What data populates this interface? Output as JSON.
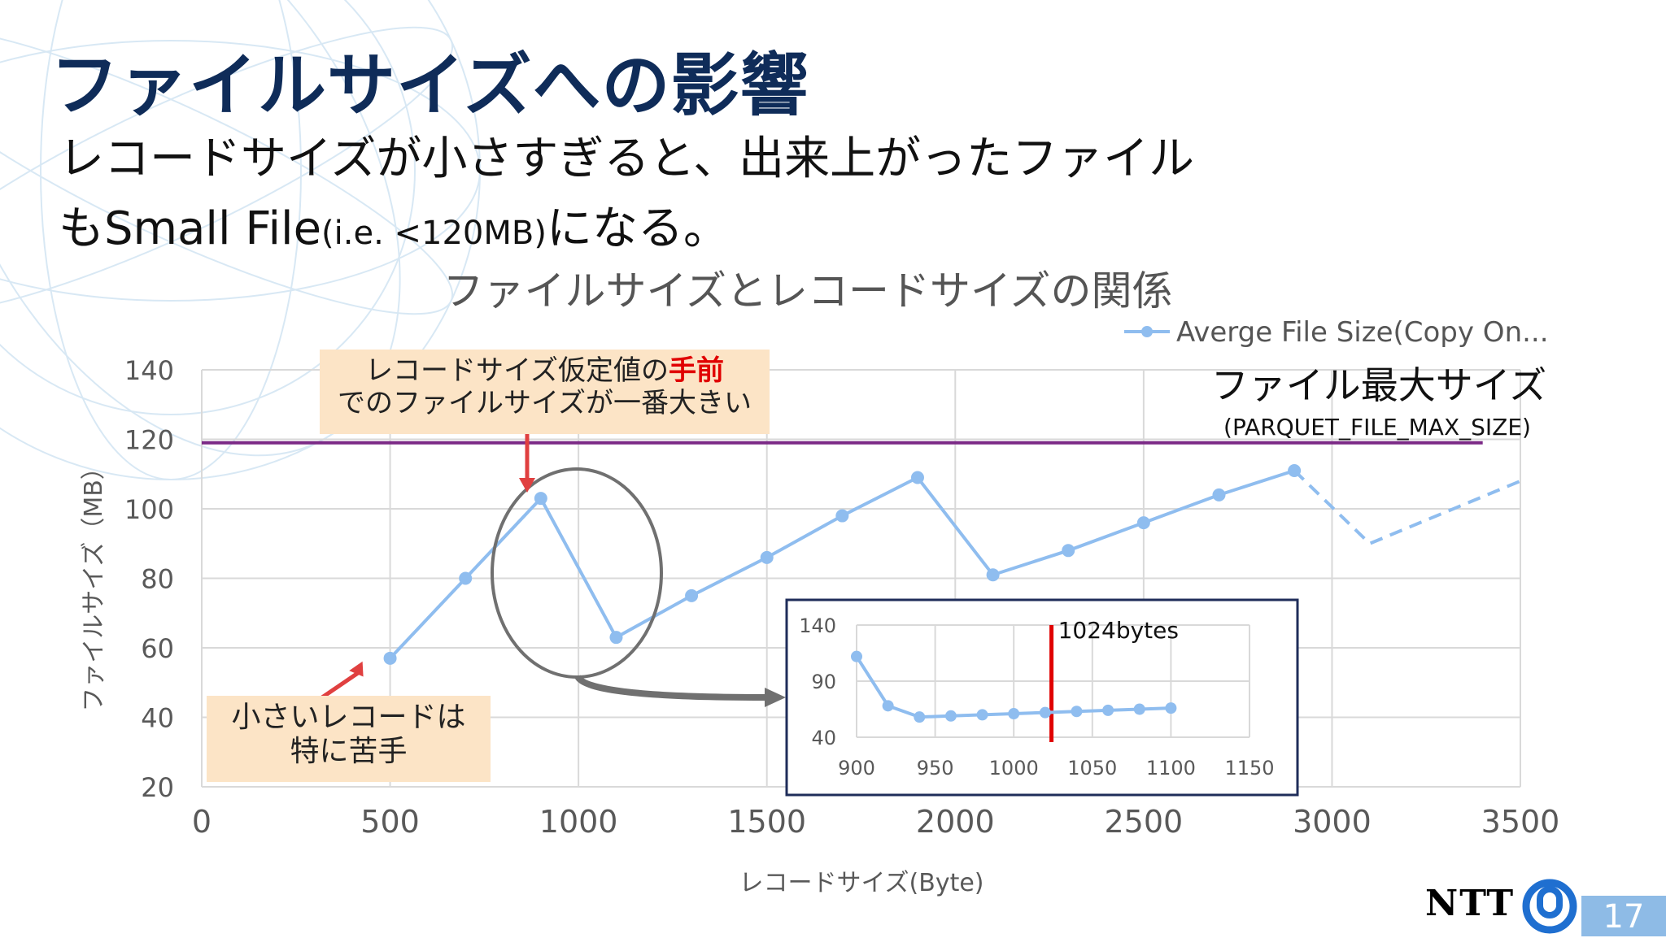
{
  "slide": {
    "title": "ファイルサイズへの影響",
    "body_line1": "レコードサイズが小さすぎると、出来上がったファイル",
    "body_line2_a": "もSmall File",
    "body_line2_b": "(i.e. <120MB)",
    "body_line2_c": "になる。",
    "page_number": "17",
    "brand": "NTT"
  },
  "annotations": {
    "callout_top_line1_a": "レコードサイズ仮定値の",
    "callout_top_line1_b": "手前",
    "callout_top_line2": "でのファイルサイズが一番大きい",
    "callout_bottom_line1": "小さいレコードは",
    "callout_bottom_line2": "特に苦手",
    "max_label": "ファイル最大サイズ",
    "max_sublabel": "(PARQUET_FILE_MAX_SIZE)",
    "inset_marker_label": "1024bytes"
  },
  "colors": {
    "title": "#0f2c59",
    "series": "#8fbdef",
    "max_line": "#7b2a86",
    "callout_bg": "#fce4c6",
    "highlight": "#e00000",
    "inset_border": "#1f2d5a",
    "marker_line": "#e00000"
  },
  "chart_data": [
    {
      "type": "line",
      "title": "ファイルサイズとレコードサイズの関係",
      "xlabel": "レコードサイズ(Byte)",
      "ylabel": "ファイルサイズ（MB）",
      "xlim": [
        0,
        3500
      ],
      "ylim": [
        20,
        140
      ],
      "xticks": [
        0,
        500,
        1000,
        1500,
        2000,
        2500,
        3000,
        3500
      ],
      "yticks": [
        20,
        40,
        60,
        80,
        100,
        120,
        140
      ],
      "grid": true,
      "legend": "top-right",
      "series": [
        {
          "name": "Averge File Size(Copy On...",
          "x": [
            500,
            700,
            900,
            1100,
            1300,
            1500,
            1700,
            1900,
            2100,
            2300,
            2500,
            2700,
            2900
          ],
          "y": [
            57,
            80,
            103,
            63,
            75,
            86,
            98,
            109,
            81,
            88,
            96,
            104,
            111
          ]
        }
      ],
      "extrapolated": {
        "x": [
          2900,
          3100,
          3500
        ],
        "y": [
          111,
          90,
          108
        ]
      },
      "reference_line": {
        "y": 119,
        "label": "ファイル最大サイズ"
      }
    },
    {
      "type": "line",
      "title": "",
      "xlim": [
        900,
        1150
      ],
      "ylim": [
        40,
        140
      ],
      "xticks": [
        900,
        950,
        1000,
        1050,
        1100,
        1150
      ],
      "yticks": [
        40,
        90,
        140
      ],
      "grid": true,
      "series": [
        {
          "x": [
            900,
            920,
            940,
            960,
            980,
            1000,
            1020,
            1040,
            1060,
            1080,
            1100
          ],
          "y": [
            112,
            68,
            58,
            59,
            60,
            61,
            62,
            63,
            64,
            65,
            66
          ]
        }
      ],
      "marker": {
        "x": 1024,
        "label": "1024bytes"
      }
    }
  ]
}
